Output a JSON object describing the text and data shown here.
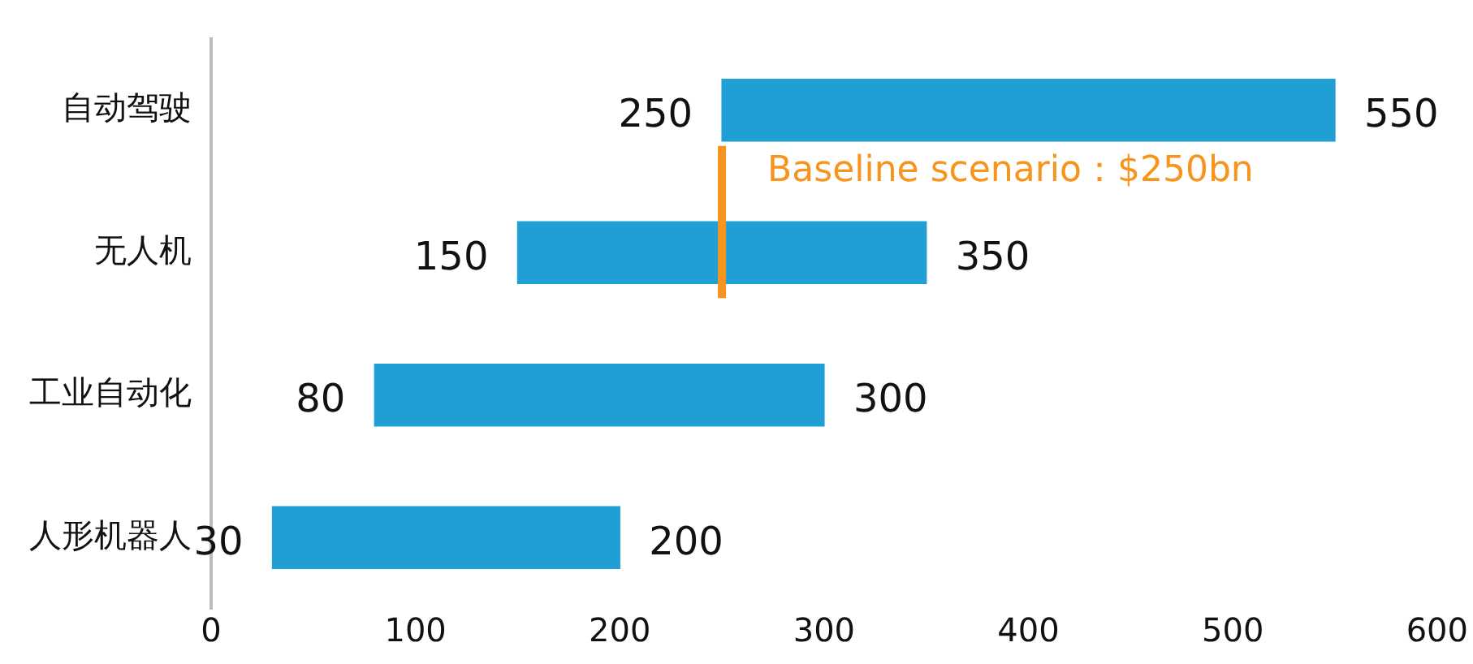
{
  "chart_data": {
    "type": "bar",
    "orientation": "horizontal",
    "categories": [
      "自动驾驶",
      "无人机",
      "工业自动化",
      "人形机器人"
    ],
    "values": [
      300,
      200,
      220,
      170
    ],
    "base": [
      250,
      150,
      80,
      30
    ],
    "color": "#1f9fd4",
    "xlim": [
      0,
      600
    ],
    "xticks": [
      0,
      100,
      200,
      300,
      400,
      500,
      600
    ],
    "grid": false,
    "legend": false,
    "ref_lines": [
      {
        "axis": "x",
        "value": 250,
        "label": "Baseline scenario：$250bn",
        "color": "#f7941d"
      }
    ],
    "annotations": [
      {
        "text": "250",
        "x": 250,
        "y": "自动驾驶"
      },
      {
        "text": "550",
        "x": 550,
        "y": "自动驾驶"
      },
      {
        "text": "150",
        "x": 150,
        "y": "无人机"
      },
      {
        "text": "350",
        "x": 350,
        "y": "无人机"
      },
      {
        "text": "80",
        "x": 80,
        "y": "工业自动化"
      },
      {
        "text": "300",
        "x": 300,
        "y": "工业自动化"
      },
      {
        "text": "30",
        "x": 30,
        "y": "人形机器人"
      },
      {
        "text": "200",
        "x": 200,
        "y": "人形机器人"
      }
    ]
  }
}
